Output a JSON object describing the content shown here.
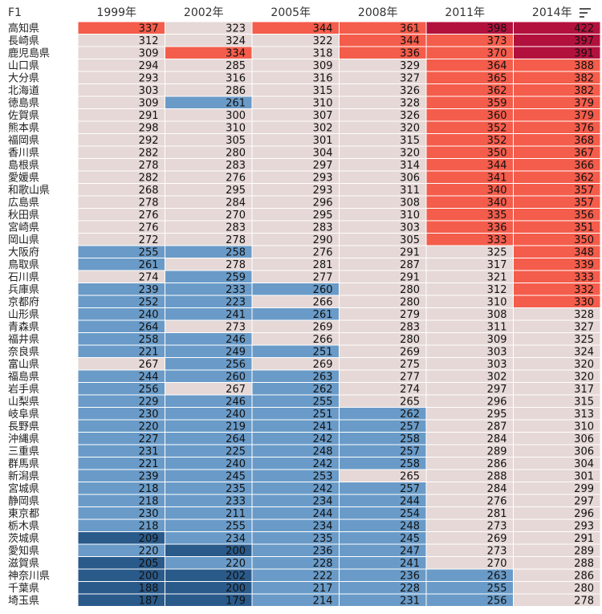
{
  "chart_data": {
    "type": "heatmap",
    "row_header": "F1",
    "columns": [
      "1999年",
      "2002年",
      "2005年",
      "2008年",
      "2011年",
      "2014年"
    ],
    "rows": [
      "高知県",
      "長崎県",
      "鹿児島県",
      "山口県",
      "大分県",
      "北海道",
      "徳島県",
      "佐賀県",
      "熊本県",
      "福岡県",
      "香川県",
      "島根県",
      "愛媛県",
      "和歌山県",
      "広島県",
      "秋田県",
      "宮崎県",
      "岡山県",
      "大阪府",
      "鳥取県",
      "石川県",
      "兵庫県",
      "京都府",
      "山形県",
      "青森県",
      "福井県",
      "奈良県",
      "富山県",
      "福島県",
      "岩手県",
      "山梨県",
      "岐阜県",
      "長野県",
      "沖縄県",
      "三重県",
      "群馬県",
      "新潟県",
      "宮城県",
      "静岡県",
      "東京都",
      "栃木県",
      "茨城県",
      "愛知県",
      "滋賀県",
      "神奈川県",
      "千葉県",
      "埼玉県"
    ],
    "values": [
      [
        337,
        323,
        344,
        361,
        398,
        422
      ],
      [
        312,
        324,
        322,
        344,
        373,
        397
      ],
      [
        309,
        334,
        318,
        336,
        370,
        391
      ],
      [
        294,
        285,
        309,
        329,
        364,
        388
      ],
      [
        293,
        316,
        316,
        327,
        365,
        382
      ],
      [
        303,
        286,
        315,
        326,
        362,
        382
      ],
      [
        309,
        261,
        310,
        328,
        359,
        379
      ],
      [
        291,
        300,
        307,
        326,
        360,
        379
      ],
      [
        298,
        310,
        302,
        320,
        352,
        376
      ],
      [
        292,
        305,
        301,
        315,
        352,
        368
      ],
      [
        282,
        280,
        304,
        320,
        350,
        367
      ],
      [
        278,
        283,
        297,
        314,
        344,
        366
      ],
      [
        282,
        276,
        293,
        306,
        341,
        362
      ],
      [
        268,
        295,
        293,
        311,
        340,
        357
      ],
      [
        278,
        284,
        296,
        308,
        340,
        357
      ],
      [
        276,
        270,
        295,
        310,
        335,
        356
      ],
      [
        276,
        283,
        283,
        303,
        336,
        351
      ],
      [
        272,
        278,
        290,
        305,
        333,
        350
      ],
      [
        255,
        258,
        276,
        291,
        325,
        348
      ],
      [
        261,
        278,
        281,
        287,
        317,
        339
      ],
      [
        274,
        259,
        277,
        291,
        321,
        333
      ],
      [
        239,
        233,
        260,
        280,
        312,
        332
      ],
      [
        252,
        223,
        266,
        280,
        310,
        330
      ],
      [
        240,
        241,
        261,
        279,
        308,
        328
      ],
      [
        264,
        273,
        269,
        283,
        311,
        327
      ],
      [
        258,
        246,
        266,
        280,
        309,
        325
      ],
      [
        221,
        249,
        251,
        269,
        303,
        324
      ],
      [
        267,
        256,
        269,
        275,
        303,
        320
      ],
      [
        244,
        260,
        263,
        277,
        302,
        320
      ],
      [
        256,
        267,
        262,
        274,
        297,
        317
      ],
      [
        229,
        246,
        255,
        265,
        296,
        315
      ],
      [
        230,
        240,
        251,
        262,
        295,
        313
      ],
      [
        220,
        219,
        241,
        257,
        287,
        310
      ],
      [
        227,
        264,
        242,
        258,
        284,
        306
      ],
      [
        231,
        225,
        248,
        257,
        289,
        306
      ],
      [
        221,
        240,
        242,
        258,
        286,
        304
      ],
      [
        239,
        245,
        253,
        265,
        288,
        301
      ],
      [
        218,
        235,
        242,
        257,
        284,
        299
      ],
      [
        218,
        233,
        234,
        244,
        276,
        297
      ],
      [
        230,
        211,
        244,
        254,
        281,
        296
      ],
      [
        218,
        255,
        234,
        248,
        273,
        293
      ],
      [
        209,
        234,
        235,
        245,
        269,
        291
      ],
      [
        220,
        200,
        236,
        247,
        273,
        289
      ],
      [
        205,
        220,
        228,
        241,
        270,
        288
      ],
      [
        200,
        202,
        222,
        236,
        263,
        286
      ],
      [
        188,
        200,
        217,
        228,
        255,
        280
      ],
      [
        187,
        179,
        214,
        231,
        256,
        278
      ]
    ],
    "colors": {
      "dark_red": "#b3113d",
      "red": "#f45c4b",
      "neutral": "#e5d8d6",
      "blue": "#6a9bc8",
      "dark_blue": "#2a5a8a"
    },
    "sort_icon": "sort-descending-icon"
  }
}
